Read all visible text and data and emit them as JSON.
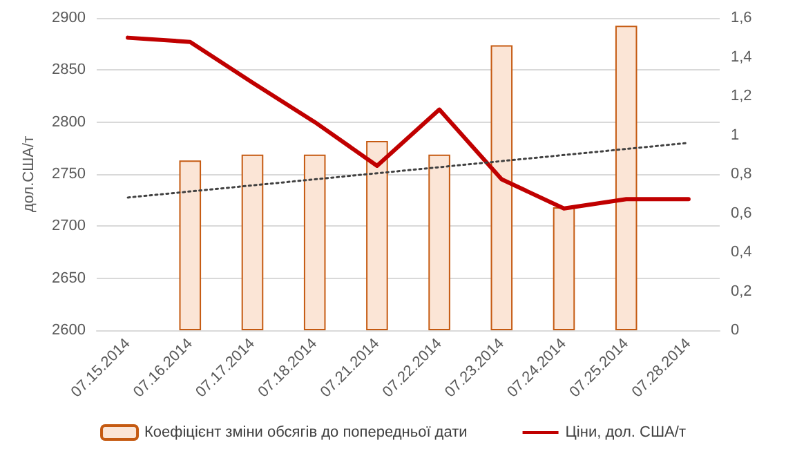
{
  "chart_data": {
    "type": "bar",
    "ylabel": "дол.США/т",
    "categories": [
      "07.15.2014",
      "07.16.2014",
      "07.17.2014",
      "07.18.2014",
      "07.21.2014",
      "07.22.2014",
      "07.23.2014",
      "07.24.2014",
      "07.25.2014",
      "07.28.2014"
    ],
    "series": [
      {
        "name": "Коефіцієнт зміни обсягів до попередньої дати",
        "axis": "y2",
        "color": "#fbe5d6",
        "values": [
          null,
          0.87,
          0.9,
          0.9,
          0.97,
          0.9,
          1.46,
          0.63,
          1.56,
          null
        ]
      },
      {
        "name": "Ціни, дол. США/т",
        "type": "line",
        "color": "#c00000",
        "values": [
          2881,
          2877,
          2838,
          2800,
          2758,
          2812,
          2745,
          2717,
          2726,
          2726
        ]
      },
      {
        "type": "line",
        "axis": "y2",
        "color": "#404040",
        "line_style": "dotted",
        "x": [
          "07.15.2014",
          "07.28.2014"
        ],
        "values": [
          0.68,
          0.96
        ]
      }
    ],
    "ylim": [
      2600,
      2900
    ],
    "yticks": [
      2600,
      2650,
      2700,
      2750,
      2800,
      2850,
      2900
    ],
    "y2lim": [
      0,
      1.6
    ],
    "y2ticks": [
      {
        "value": 0,
        "label": "0"
      },
      {
        "value": 0.2,
        "label": "0,2"
      },
      {
        "value": 0.4,
        "label": "0,4"
      },
      {
        "value": 0.6,
        "label": "0,6"
      },
      {
        "value": 0.8,
        "label": "0,8"
      },
      {
        "value": 1,
        "label": "1"
      },
      {
        "value": 1.2,
        "label": "1,2"
      },
      {
        "value": 1.4,
        "label": "1,4"
      },
      {
        "value": 1.6,
        "label": "1,6"
      }
    ],
    "grid": "y",
    "legend": "bottom",
    "marker": "none",
    "line_style": "solid"
  }
}
